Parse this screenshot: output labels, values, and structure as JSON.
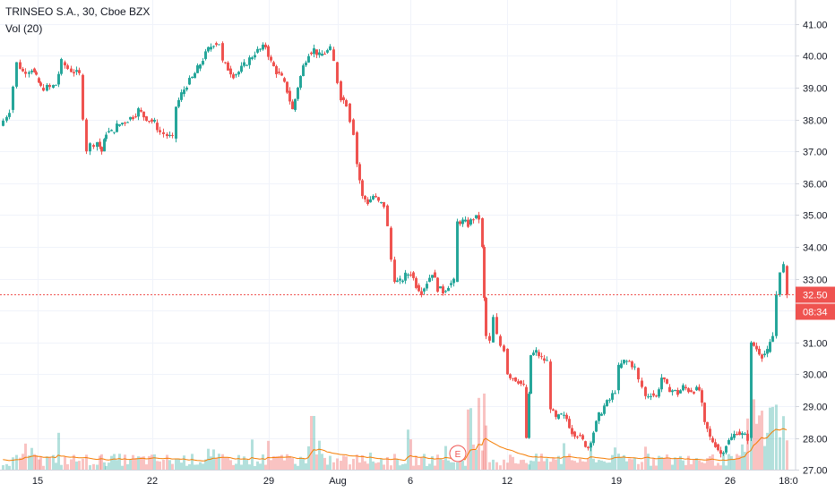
{
  "chart_data": {
    "type": "candlestick",
    "title": "TRINSEO S.A., 30, Cboe BZX",
    "indicator_label": "Vol (20)",
    "ylim": [
      26.5,
      41.25
    ],
    "y_ticks": [
      "27.00",
      "28.00",
      "29.00",
      "30.00",
      "31.00",
      "32.00",
      "33.00",
      "34.00",
      "35.00",
      "36.00",
      "37.00",
      "38.00",
      "39.00",
      "40.00",
      "41.00"
    ],
    "x_ticks": [
      "15",
      "22",
      "29",
      "Aug",
      "6",
      "12",
      "19",
      "26",
      "18:0"
    ],
    "last_price": "32.50",
    "countdown": "08:34",
    "earnings_marker": "E",
    "grid": true,
    "price_path": [
      [
        0,
        37.8
      ],
      [
        10,
        38.3
      ],
      [
        18,
        39.8
      ],
      [
        25,
        39.5
      ],
      [
        35,
        39.6
      ],
      [
        40,
        39.3
      ],
      [
        45,
        39.0
      ],
      [
        55,
        39.0
      ],
      [
        62,
        39.1
      ],
      [
        68,
        39.8
      ],
      [
        75,
        39.6
      ],
      [
        82,
        39.5
      ],
      [
        88,
        39.4
      ],
      [
        92,
        38.0
      ],
      [
        96,
        37.0
      ],
      [
        100,
        37.2
      ],
      [
        108,
        37.3
      ],
      [
        113,
        37.0
      ],
      [
        118,
        37.6
      ],
      [
        124,
        37.6
      ],
      [
        130,
        37.8
      ],
      [
        136,
        37.9
      ],
      [
        142,
        38.0
      ],
      [
        148,
        38.1
      ],
      [
        154,
        38.3
      ],
      [
        160,
        38.1
      ],
      [
        166,
        38.0
      ],
      [
        172,
        37.9
      ],
      [
        178,
        37.6
      ],
      [
        186,
        37.5
      ],
      [
        192,
        37.4
      ],
      [
        196,
        38.4
      ],
      [
        202,
        38.8
      ],
      [
        208,
        39.1
      ],
      [
        214,
        39.3
      ],
      [
        220,
        39.6
      ],
      [
        226,
        39.9
      ],
      [
        232,
        40.2
      ],
      [
        238,
        40.4
      ],
      [
        244,
        40.4
      ],
      [
        248,
        39.8
      ],
      [
        254,
        39.6
      ],
      [
        260,
        39.4
      ],
      [
        266,
        39.5
      ],
      [
        272,
        39.7
      ],
      [
        278,
        39.9
      ],
      [
        284,
        40.1
      ],
      [
        290,
        40.2
      ],
      [
        296,
        40.3
      ],
      [
        302,
        39.8
      ],
      [
        308,
        39.5
      ],
      [
        314,
        39.3
      ],
      [
        320,
        38.9
      ],
      [
        326,
        38.3
      ],
      [
        332,
        39.0
      ],
      [
        338,
        39.7
      ],
      [
        344,
        40.1
      ],
      [
        350,
        40.2
      ],
      [
        356,
        40.0
      ],
      [
        362,
        40.1
      ],
      [
        368,
        40.2
      ],
      [
        372,
        39.8
      ],
      [
        376,
        39.2
      ],
      [
        380,
        38.7
      ],
      [
        386,
        38.5
      ],
      [
        390,
        38.0
      ],
      [
        394,
        37.6
      ],
      [
        398,
        36.6
      ],
      [
        404,
        35.6
      ],
      [
        410,
        35.4
      ],
      [
        416,
        35.6
      ],
      [
        422,
        35.4
      ],
      [
        428,
        35.3
      ],
      [
        432,
        34.6
      ],
      [
        436,
        33.6
      ],
      [
        440,
        32.9
      ],
      [
        446,
        32.9
      ],
      [
        452,
        33.1
      ],
      [
        458,
        33.2
      ],
      [
        464,
        32.8
      ],
      [
        470,
        32.6
      ],
      [
        476,
        32.9
      ],
      [
        482,
        33.2
      ],
      [
        488,
        32.7
      ],
      [
        494,
        32.6
      ],
      [
        500,
        32.8
      ],
      [
        506,
        32.9
      ],
      [
        510,
        34.8
      ],
      [
        516,
        34.8
      ],
      [
        522,
        34.7
      ],
      [
        528,
        34.9
      ],
      [
        534,
        34.9
      ],
      [
        538,
        34.0
      ],
      [
        540,
        32.4
      ],
      [
        542,
        31.2
      ],
      [
        546,
        31.0
      ],
      [
        550,
        31.8
      ],
      [
        554,
        31.2
      ],
      [
        558,
        30.9
      ],
      [
        562,
        30.8
      ],
      [
        566,
        30.0
      ],
      [
        572,
        29.9
      ],
      [
        578,
        29.8
      ],
      [
        584,
        29.6
      ],
      [
        587,
        28.0
      ],
      [
        592,
        30.6
      ],
      [
        598,
        30.7
      ],
      [
        604,
        30.5
      ],
      [
        610,
        30.4
      ],
      [
        614,
        28.9
      ],
      [
        620,
        28.6
      ],
      [
        626,
        28.7
      ],
      [
        632,
        28.6
      ],
      [
        638,
        28.2
      ],
      [
        644,
        28.1
      ],
      [
        650,
        27.9
      ],
      [
        656,
        27.7
      ],
      [
        662,
        28.2
      ],
      [
        668,
        28.7
      ],
      [
        674,
        29.0
      ],
      [
        680,
        29.2
      ],
      [
        686,
        29.5
      ],
      [
        690,
        30.2
      ],
      [
        696,
        30.4
      ],
      [
        702,
        30.4
      ],
      [
        708,
        30.2
      ],
      [
        712,
        29.8
      ],
      [
        716,
        29.6
      ],
      [
        720,
        29.3
      ],
      [
        726,
        29.4
      ],
      [
        732,
        29.3
      ],
      [
        738,
        29.9
      ],
      [
        744,
        29.6
      ],
      [
        750,
        29.5
      ],
      [
        756,
        29.4
      ],
      [
        762,
        29.6
      ],
      [
        768,
        29.5
      ],
      [
        774,
        29.5
      ],
      [
        780,
        29.5
      ],
      [
        786,
        28.5
      ],
      [
        792,
        28.0
      ],
      [
        798,
        27.8
      ],
      [
        804,
        27.5
      ],
      [
        810,
        27.8
      ],
      [
        816,
        28.0
      ],
      [
        822,
        28.2
      ],
      [
        828,
        28.1
      ],
      [
        834,
        28.0
      ],
      [
        838,
        31.0
      ],
      [
        844,
        30.8
      ],
      [
        850,
        30.6
      ],
      [
        856,
        30.7
      ],
      [
        862,
        31.2
      ],
      [
        866,
        32.5
      ],
      [
        870,
        33.2
      ],
      [
        874,
        33.4
      ],
      [
        878,
        32.5
      ]
    ]
  }
}
